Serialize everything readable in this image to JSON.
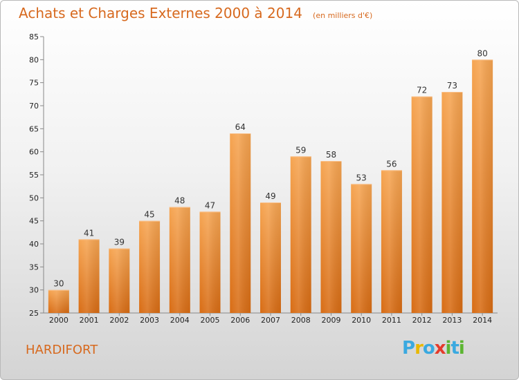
{
  "chart_data": {
    "type": "bar",
    "title": "Achats et Charges Externes 2000 à 2014",
    "subtitle": "(en milliers d'€)",
    "categories": [
      "2000",
      "2001",
      "2002",
      "2003",
      "2004",
      "2005",
      "2006",
      "2007",
      "2008",
      "2009",
      "2010",
      "2011",
      "2012",
      "2013",
      "2014"
    ],
    "values": [
      30,
      41,
      39,
      45,
      48,
      47,
      64,
      49,
      59,
      58,
      53,
      56,
      72,
      73,
      80
    ],
    "ylim": [
      25,
      85
    ],
    "yticks": [
      25,
      30,
      35,
      40,
      45,
      50,
      55,
      60,
      65,
      70,
      75,
      80,
      85
    ],
    "grid": false,
    "xlabel": "",
    "ylabel": "",
    "bar_color": "#f0922e"
  },
  "location": "HARDIFORT",
  "logo": {
    "letters": [
      "P",
      "r",
      "o",
      "x",
      "i",
      "t",
      "i"
    ],
    "colors": [
      "#3aa9e0",
      "#e8b800",
      "#3aa9e0",
      "#e53b2b",
      "#5cb531",
      "#3aa9e0",
      "#5cb531"
    ]
  }
}
